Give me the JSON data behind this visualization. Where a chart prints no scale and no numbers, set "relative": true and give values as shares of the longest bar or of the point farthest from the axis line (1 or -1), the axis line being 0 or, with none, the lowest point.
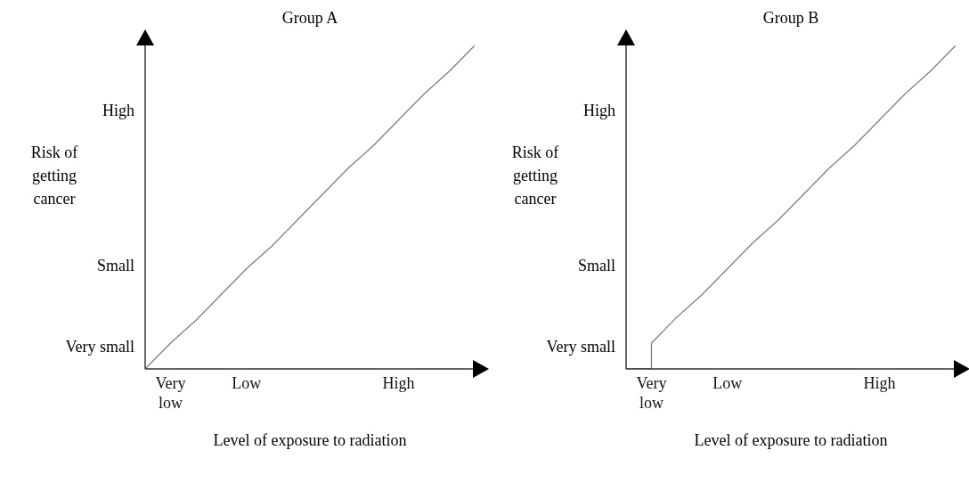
{
  "chart_data": [
    {
      "type": "line",
      "title": "Group A",
      "xlabel": "Level of exposure to radiation",
      "ylabel": "Risk of getting cancer",
      "relative": true,
      "categories": [
        null,
        "Very low",
        null,
        null,
        "Low",
        null,
        null,
        null,
        null,
        null,
        "High",
        null,
        null,
        null
      ],
      "annotations": [
        "Very small",
        "Small",
        "High"
      ],
      "series": [
        {
          "color": "#808080",
          "values": [
            0,
            0.08,
            0.15,
            0.23,
            0.31,
            0.38,
            0.46,
            0.54,
            0.62,
            0.69,
            0.77,
            0.85,
            0.92,
            1
          ]
        }
      ]
    },
    {
      "type": "line",
      "title": "Group B",
      "xlabel": "Level of exposure to radiation",
      "ylabel": "Risk of getting cancer",
      "relative": true,
      "categories": [
        null,
        "Very low",
        null,
        null,
        "Low",
        null,
        null,
        null,
        null,
        null,
        "High",
        null,
        null,
        null
      ],
      "annotations": [
        "Very small",
        "Small",
        "High"
      ],
      "series": [
        {
          "type": "step",
          "color": "#808080",
          "values": [
            0,
            0.08,
            null,
            null,
            null,
            null,
            null,
            null,
            null,
            null,
            null,
            null,
            null,
            null
          ]
        },
        {
          "color": "#808080",
          "values": [
            null,
            0.08,
            0.16,
            0.23,
            0.31,
            0.39,
            0.46,
            0.54,
            0.62,
            0.69,
            0.77,
            0.85,
            0.92,
            1
          ]
        }
      ]
    }
  ]
}
